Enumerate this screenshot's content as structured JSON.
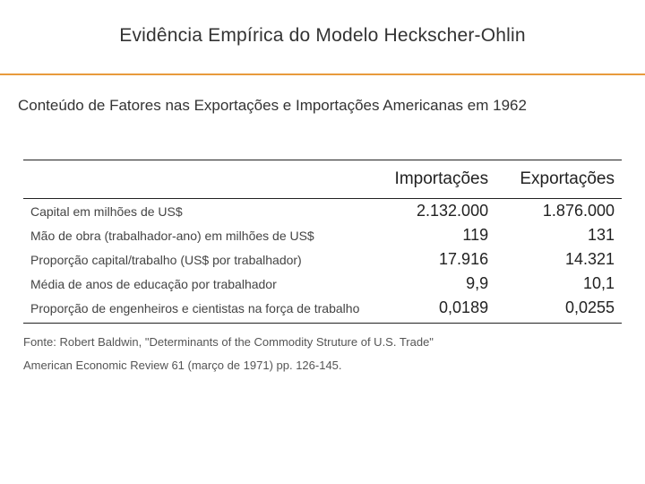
{
  "title": "Evidência Empírica do Modelo Heckscher-Ohlin",
  "subtitle": "Conteúdo de Fatores nas Exportações e Importações Americanas em 1962",
  "colors": {
    "rule": "#e89a3c",
    "text": "#333333",
    "value": "#222222",
    "source": "#555555",
    "border": "#222222",
    "background": "#ffffff"
  },
  "table": {
    "type": "table",
    "columns": [
      "",
      "Importações",
      "Exportações"
    ],
    "rows": [
      {
        "label": "Capital em milhões de US$",
        "imp": "2.132.000",
        "exp": "1.876.000"
      },
      {
        "label": "Mão de obra (trabalhador-ano) em milhões de US$",
        "imp": "119",
        "exp": "131"
      },
      {
        "label": "Proporção capital/trabalho (US$ por trabalhador)",
        "imp": "17.916",
        "exp": "14.321"
      },
      {
        "label": "Média de anos de educação por trabalhador",
        "imp": "9,9",
        "exp": "10,1"
      },
      {
        "label": "Proporção de engenheiros e cientistas na força de trabalho",
        "imp": "0,0189",
        "exp": "0,0255"
      }
    ],
    "col_align": [
      "left",
      "right",
      "right"
    ],
    "header_fontsize": 19,
    "label_fontsize": 14,
    "value_fontsize": 18,
    "border_color": "#222222",
    "border_width": 1.5
  },
  "source": {
    "line1": "Fonte: Robert Baldwin, \"Determinants of the Commodity Struture of U.S. Trade\"",
    "line2": "American Economic Review 61 (março de 1971) pp. 126-145."
  }
}
